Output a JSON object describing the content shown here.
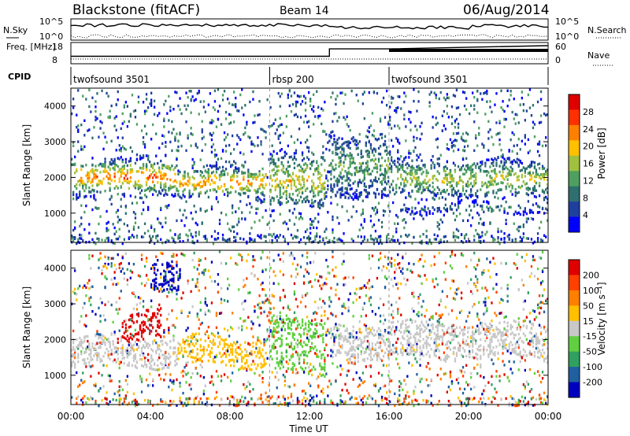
{
  "header": {
    "title": "Blackstone (fitACF)",
    "beam": "Beam 14",
    "date": "06/Aug/2014"
  },
  "chart_data": [
    {
      "type": "line",
      "panel": "noise",
      "ylabel_left": "N.Sky",
      "ylabel_right": "N.Search",
      "left_ticks": [
        "10^5",
        "10^0"
      ],
      "right_ticks": [
        "10^5",
        "10^0"
      ],
      "series": [
        {
          "name": "N.Sky",
          "style": "solid"
        },
        {
          "name": "N.Search",
          "style": "dotted"
        }
      ]
    },
    {
      "type": "line",
      "panel": "frequency",
      "ylabel_left": "Freq. [MHz]",
      "ylabel_right": "Nave",
      "left_ticks": [
        "18",
        "8"
      ],
      "right_ticks": [
        "60",
        "0"
      ],
      "x": [
        0,
        13.0,
        13.0,
        16.0,
        24.0
      ],
      "freq_level": [
        0.35,
        0.35,
        0.7,
        0.7,
        0.85
      ]
    },
    {
      "type": "table",
      "panel": "cpid",
      "label": "CPID",
      "segments": [
        {
          "name": "twofsound 3501",
          "start": 0.0,
          "end": 10.0
        },
        {
          "name": "rbsp 200",
          "start": 10.0,
          "end": 16.0
        },
        {
          "name": "twofsound 3501",
          "start": 16.0,
          "end": 24.0
        }
      ]
    },
    {
      "type": "heatmap",
      "panel": "power",
      "ylabel": "Slant Range [km]",
      "ylim": [
        180,
        4500
      ],
      "yticks": [
        "1000",
        "2000",
        "3000",
        "4000"
      ],
      "colorbar_label": "Power [dB]",
      "colorbar_ticks": [
        "28",
        "24",
        "20",
        "16",
        "12",
        "8",
        "4"
      ],
      "colors": [
        "#0000ff",
        "#1f3f9f",
        "#2f6f6f",
        "#4fa060",
        "#a0c040",
        "#ffc000",
        "#ff8000",
        "#ff3000",
        "#e00000"
      ],
      "bands": [
        {
          "t0": 0.0,
          "t1": 5.3,
          "r0": 1600,
          "r1": 2500,
          "strength": 0.8
        },
        {
          "t0": 5.3,
          "t1": 9.8,
          "r0": 1500,
          "r1": 2300,
          "strength": 0.75
        },
        {
          "t0": 10.0,
          "t1": 12.8,
          "r0": 1200,
          "r1": 2700,
          "strength": 0.6
        },
        {
          "t0": 13.0,
          "t1": 16.0,
          "r0": 1500,
          "r1": 3200,
          "strength": 0.4
        },
        {
          "t0": 16.0,
          "t1": 24.0,
          "r0": 1500,
          "r1": 2500,
          "strength": 0.55
        },
        {
          "t0": 16.0,
          "t1": 24.0,
          "r0": 1100,
          "r1": 1300,
          "strength": 0.3
        }
      ]
    },
    {
      "type": "heatmap",
      "panel": "velocity",
      "ylabel": "Slant Range [km]",
      "ylim": [
        180,
        4500
      ],
      "yticks": [
        "1000",
        "2000",
        "3000",
        "4000"
      ],
      "colorbar_label": "Velocity [m s⁻¹]",
      "colorbar_ticks": [
        "200",
        "100",
        "50",
        "15",
        "-15",
        "-50",
        "-100",
        "-200"
      ],
      "colors": [
        "#0000c0",
        "#2060a0",
        "#30a060",
        "#60d040",
        "#c8c8c8",
        "#ffc000",
        "#ff8000",
        "#ff4000",
        "#e00000"
      ],
      "bands": [
        {
          "t0": 0.0,
          "t1": 5.3,
          "r0": 1300,
          "r1": 2100,
          "color": 4
        },
        {
          "t0": 2.5,
          "t1": 4.5,
          "r0": 2000,
          "r1": 2800,
          "color": 8
        },
        {
          "t0": 4.0,
          "t1": 5.5,
          "r0": 3300,
          "r1": 4100,
          "color": 0
        },
        {
          "t0": 5.3,
          "t1": 9.8,
          "r0": 1300,
          "r1": 2100,
          "color": 5
        },
        {
          "t0": 10.0,
          "t1": 12.8,
          "r0": 1100,
          "r1": 2600,
          "color": 3
        },
        {
          "t0": 13.0,
          "t1": 24.0,
          "r0": 1500,
          "r1": 2500,
          "color": 4
        }
      ]
    }
  ],
  "x_axis": {
    "ticks": [
      "00:00",
      "04:00",
      "08:00",
      "12:00",
      "16:00",
      "20:00",
      "00:00"
    ],
    "xlabel": "Time UT",
    "xlim": [
      0,
      24
    ]
  }
}
